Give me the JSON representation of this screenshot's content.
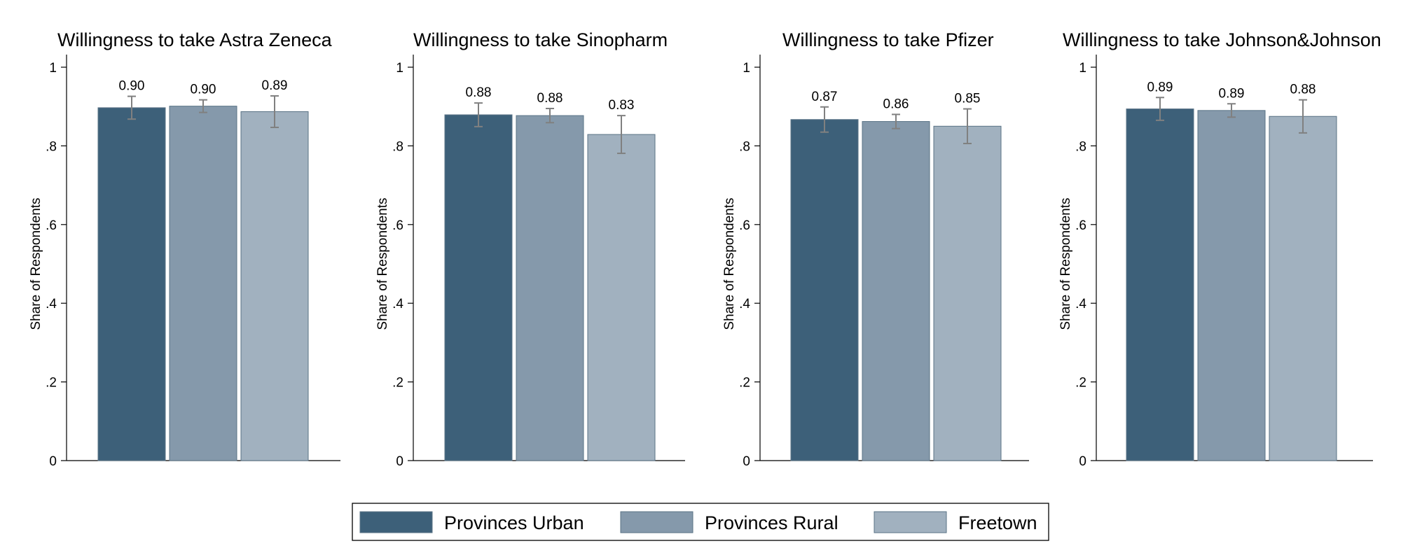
{
  "chart_data": [
    {
      "type": "bar",
      "title": "Willingness to take Astra Zeneca",
      "ylabel": "Share of Respondents",
      "xlabel": "",
      "ylim": [
        0,
        1
      ],
      "yticks": [
        "0",
        ".2",
        ".4",
        ".6",
        ".8",
        "1"
      ],
      "categories": [
        "Provinces Urban",
        "Provinces Rural",
        "Freetown"
      ],
      "values": [
        0.897,
        0.901,
        0.887
      ],
      "value_labels": [
        "0.90",
        "0.90",
        "0.89"
      ],
      "ci_low": [
        0.868,
        0.885,
        0.847
      ],
      "ci_high": [
        0.926,
        0.917,
        0.927
      ]
    },
    {
      "type": "bar",
      "title": "Willingness to take Sinopharm",
      "ylabel": "Share of Respondents",
      "xlabel": "",
      "ylim": [
        0,
        1
      ],
      "yticks": [
        "0",
        ".2",
        ".4",
        ".6",
        ".8",
        "1"
      ],
      "categories": [
        "Provinces Urban",
        "Provinces Rural",
        "Freetown"
      ],
      "values": [
        0.879,
        0.877,
        0.829
      ],
      "value_labels": [
        "0.88",
        "0.88",
        "0.83"
      ],
      "ci_low": [
        0.849,
        0.859,
        0.781
      ],
      "ci_high": [
        0.909,
        0.895,
        0.877
      ]
    },
    {
      "type": "bar",
      "title": "Willingness to take Pfizer",
      "ylabel": "Share of Respondents",
      "xlabel": "",
      "ylim": [
        0,
        1
      ],
      "yticks": [
        "0",
        ".2",
        ".4",
        ".6",
        ".8",
        "1"
      ],
      "categories": [
        "Provinces Urban",
        "Provinces Rural",
        "Freetown"
      ],
      "values": [
        0.867,
        0.862,
        0.85
      ],
      "value_labels": [
        "0.87",
        "0.86",
        "0.85"
      ],
      "ci_low": [
        0.835,
        0.844,
        0.806
      ],
      "ci_high": [
        0.899,
        0.88,
        0.894
      ]
    },
    {
      "type": "bar",
      "title": "Willingness to take Johnson&Johnson",
      "ylabel": "Share of Respondents",
      "xlabel": "",
      "ylim": [
        0,
        1
      ],
      "yticks": [
        "0",
        ".2",
        ".4",
        ".6",
        ".8",
        "1"
      ],
      "categories": [
        "Provinces Urban",
        "Provinces Rural",
        "Freetown"
      ],
      "values": [
        0.894,
        0.89,
        0.875
      ],
      "value_labels": [
        "0.89",
        "0.89",
        "0.88"
      ],
      "ci_low": [
        0.865,
        0.873,
        0.833
      ],
      "ci_high": [
        0.923,
        0.907,
        0.917
      ]
    }
  ],
  "legend": {
    "placement": "bottom-center",
    "items": [
      {
        "label": "Provinces Urban",
        "color": "#3d6079"
      },
      {
        "label": "Provinces Rural",
        "color": "#8599ab"
      },
      {
        "label": "Freetown",
        "color": "#a1b1bf"
      }
    ]
  },
  "colors": {
    "bar_outline": "#5a7386",
    "error_bar": "#808080",
    "axis": "#000000"
  }
}
